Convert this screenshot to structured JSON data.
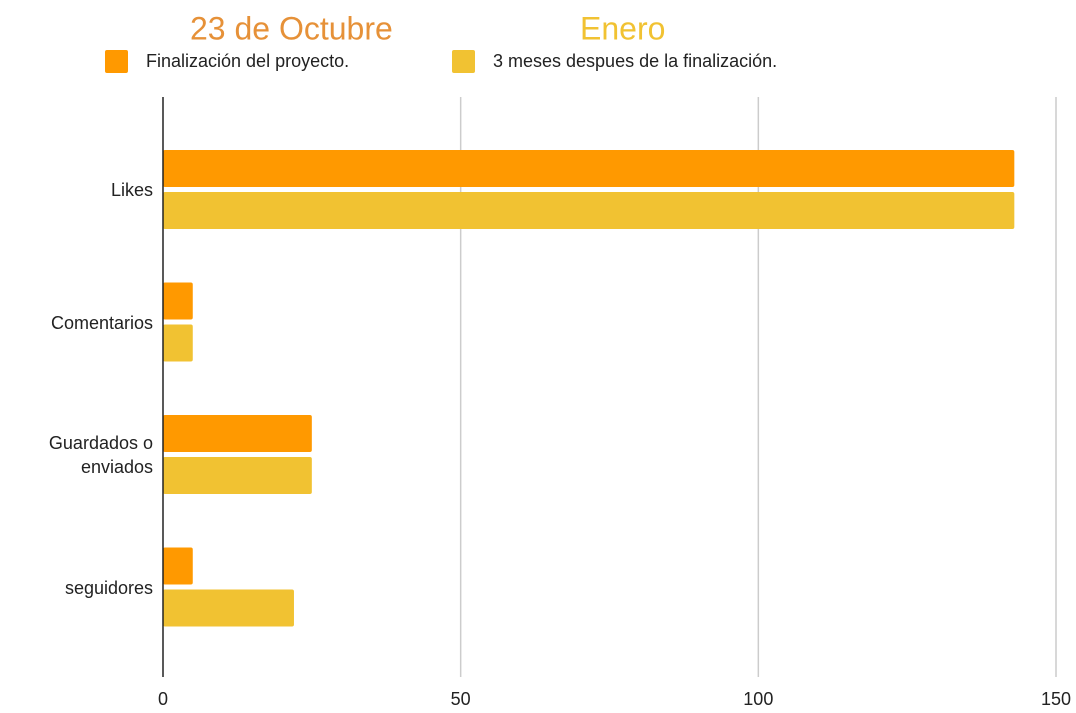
{
  "chart_data": {
    "type": "bar",
    "orientation": "horizontal",
    "annotations": [
      {
        "text": "23 de Octubre",
        "color": "#e69138"
      },
      {
        "text": "Enero",
        "color": "#f1c232"
      }
    ],
    "categories": [
      "Likes",
      "Comentarios",
      "Guardados o enviados",
      "seguidores"
    ],
    "series": [
      {
        "name": "Finalización del proyecto.",
        "color": "#ff9900",
        "values": [
          143,
          5,
          25,
          5
        ]
      },
      {
        "name": "3 meses despues de la finalización.",
        "color": "#f1c232",
        "values": [
          143,
          5,
          25,
          22
        ]
      }
    ],
    "xlim": [
      0,
      150
    ],
    "xticks": [
      0,
      50,
      100,
      150
    ],
    "grid": true,
    "legend": "top"
  }
}
